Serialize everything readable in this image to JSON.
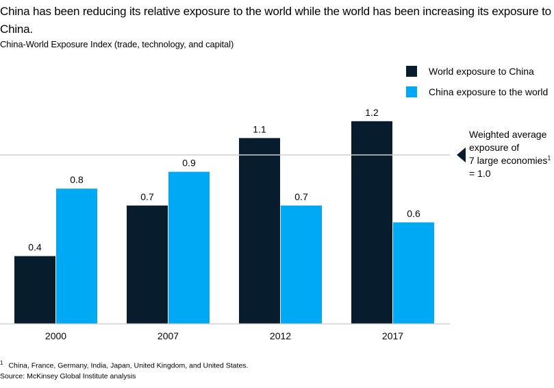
{
  "title": "China has been reducing its relative exposure to the world while the world has been increasing its exposure to China.",
  "subtitle": "China-World Exposure Index (trade, technology, and capital)",
  "colors": {
    "world_to_china": "#071C2C",
    "china_to_world": "#00A9F4",
    "reference_line": "#D0D0D0",
    "axis": "#D0D0D0"
  },
  "chart_data": {
    "type": "bar",
    "title": "China-World Exposure Index (trade, technology, and capital)",
    "xlabel": "",
    "ylabel": "",
    "categories": [
      "2000",
      "2007",
      "2012",
      "2017"
    ],
    "series": [
      {
        "name": "World exposure to China",
        "values": [
          0.4,
          0.7,
          1.1,
          1.2
        ],
        "labels": [
          "0.4",
          "0.7",
          "1.1",
          "1.2"
        ]
      },
      {
        "name": "China exposure to the world",
        "values": [
          0.8,
          0.9,
          0.7,
          0.6
        ],
        "labels": [
          "0.8",
          "0.9",
          "0.7",
          "0.6"
        ]
      }
    ],
    "ylim": [
      0,
      1.3
    ],
    "grid": false,
    "legend_position": "top-right",
    "reference_line": {
      "value": 1.0,
      "label_lines": [
        "Weighted average",
        "exposure of",
        "7 large economies",
        "= 1.0"
      ],
      "footnote_marker": "1"
    }
  },
  "legend": [
    {
      "label": "World exposure to China"
    },
    {
      "label": "China exposure to the world"
    }
  ],
  "footnote": {
    "marker": "1",
    "text": "China, France, Germany, India, Japan, United Kingdom, and United States."
  },
  "source": "Source: McKinsey Global Institute analysis"
}
